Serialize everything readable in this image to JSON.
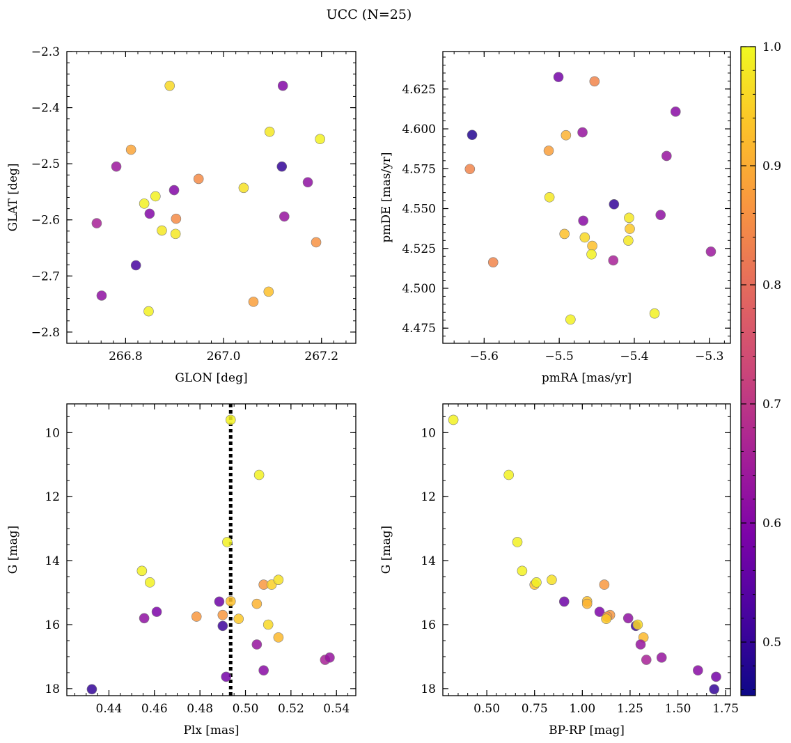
{
  "figure": {
    "suptitle": "UCC (N=25)"
  },
  "colorbar": {
    "range": [
      0.455,
      1.0
    ],
    "ticks": [
      0.5,
      0.6,
      0.7,
      0.8,
      0.9,
      1.0
    ],
    "tick_labels": [
      "0.5",
      "0.6",
      "0.7",
      "0.8",
      "0.9",
      "1.0"
    ],
    "colormap": "plasma"
  },
  "chart_data": [
    {
      "id": "panel-glon-glat",
      "type": "scatter",
      "title": "",
      "xlabel": "GLON [deg]",
      "ylabel": "GLAT [deg]",
      "xlim": [
        266.68,
        267.27
      ],
      "ylim": [
        -2.82,
        -2.3
      ],
      "y_inverted": false,
      "xticks": [
        266.8,
        267.0,
        267.2
      ],
      "xtick_labels": [
        "266.8",
        "267.0",
        "267.2"
      ],
      "yticks": [
        -2.8,
        -2.7,
        -2.6,
        -2.5,
        -2.4,
        -2.3
      ],
      "ytick_labels": [
        "−2.8",
        "−2.7",
        "−2.6",
        "−2.5",
        "−2.4",
        "−2.3"
      ],
      "x_minor_step": 0.025,
      "y_minor_step": 0.02,
      "points": [
        {
          "x": 266.89,
          "y": -2.361,
          "c": 0.96
        },
        {
          "x": 267.121,
          "y": -2.361,
          "c": 0.6
        },
        {
          "x": 266.811,
          "y": -2.475,
          "c": 0.89
        },
        {
          "x": 266.781,
          "y": -2.505,
          "c": 0.64
        },
        {
          "x": 266.949,
          "y": -2.527,
          "c": 0.85
        },
        {
          "x": 267.041,
          "y": -2.543,
          "c": 0.97
        },
        {
          "x": 267.094,
          "y": -2.443,
          "c": 0.98
        },
        {
          "x": 267.197,
          "y": -2.456,
          "c": 0.99
        },
        {
          "x": 267.119,
          "y": -2.505,
          "c": 0.5
        },
        {
          "x": 267.172,
          "y": -2.533,
          "c": 0.62
        },
        {
          "x": 266.861,
          "y": -2.558,
          "c": 0.99
        },
        {
          "x": 266.899,
          "y": -2.547,
          "c": 0.6
        },
        {
          "x": 266.838,
          "y": -2.571,
          "c": 0.99
        },
        {
          "x": 266.849,
          "y": -2.589,
          "c": 0.6
        },
        {
          "x": 266.903,
          "y": -2.598,
          "c": 0.85
        },
        {
          "x": 267.124,
          "y": -2.594,
          "c": 0.63
        },
        {
          "x": 266.741,
          "y": -2.606,
          "c": 0.66
        },
        {
          "x": 266.874,
          "y": -2.619,
          "c": 0.98
        },
        {
          "x": 266.902,
          "y": -2.625,
          "c": 0.98
        },
        {
          "x": 267.189,
          "y": -2.64,
          "c": 0.86
        },
        {
          "x": 266.821,
          "y": -2.681,
          "c": 0.52
        },
        {
          "x": 267.092,
          "y": -2.728,
          "c": 0.93
        },
        {
          "x": 266.751,
          "y": -2.735,
          "c": 0.62
        },
        {
          "x": 267.061,
          "y": -2.746,
          "c": 0.88
        },
        {
          "x": 266.847,
          "y": -2.763,
          "c": 0.99
        }
      ]
    },
    {
      "id": "panel-pm",
      "type": "scatter",
      "title": "",
      "xlabel": "pmRA [mas/yr]",
      "ylabel": "pmDE [mas/yr]",
      "xlim": [
        -5.655,
        -5.272
      ],
      "ylim": [
        4.4655,
        4.6485
      ],
      "y_inverted": false,
      "xticks": [
        -5.6,
        -5.5,
        -5.4,
        -5.3
      ],
      "xtick_labels": [
        "−5.6",
        "−5.5",
        "−5.4",
        "−5.3"
      ],
      "yticks": [
        4.475,
        4.5,
        4.525,
        4.55,
        4.575,
        4.6,
        4.625
      ],
      "ytick_labels": [
        "4.475",
        "4.500",
        "4.525",
        "4.550",
        "4.575",
        "4.600",
        "4.625"
      ],
      "x_minor_step": 0.02,
      "y_minor_step": 0.005,
      "points": [
        {
          "x": -5.501,
          "y": 4.6325,
          "c": 0.58
        },
        {
          "x": -5.453,
          "y": 4.6298,
          "c": 0.84
        },
        {
          "x": -5.345,
          "y": 4.6108,
          "c": 0.61
        },
        {
          "x": -5.616,
          "y": 4.5962,
          "c": 0.48
        },
        {
          "x": -5.469,
          "y": 4.5978,
          "c": 0.63
        },
        {
          "x": -5.491,
          "y": 4.596,
          "c": 0.91
        },
        {
          "x": -5.514,
          "y": 4.5863,
          "c": 0.88
        },
        {
          "x": -5.619,
          "y": 4.5748,
          "c": 0.84
        },
        {
          "x": -5.357,
          "y": 4.583,
          "c": 0.63
        },
        {
          "x": -5.513,
          "y": 4.5571,
          "c": 0.98
        },
        {
          "x": -5.427,
          "y": 4.5527,
          "c": 0.5
        },
        {
          "x": -5.468,
          "y": 4.5424,
          "c": 0.61
        },
        {
          "x": -5.407,
          "y": 4.5442,
          "c": 0.98
        },
        {
          "x": -5.365,
          "y": 4.546,
          "c": 0.62
        },
        {
          "x": -5.406,
          "y": 4.5373,
          "c": 0.94
        },
        {
          "x": -5.493,
          "y": 4.5341,
          "c": 0.93
        },
        {
          "x": -5.466,
          "y": 4.5319,
          "c": 0.96
        },
        {
          "x": -5.408,
          "y": 4.5299,
          "c": 0.98
        },
        {
          "x": -5.456,
          "y": 4.5266,
          "c": 0.93
        },
        {
          "x": -5.457,
          "y": 4.5213,
          "c": 0.99
        },
        {
          "x": -5.298,
          "y": 4.523,
          "c": 0.64
        },
        {
          "x": -5.428,
          "y": 4.5175,
          "c": 0.66
        },
        {
          "x": -5.588,
          "y": 4.5163,
          "c": 0.84
        },
        {
          "x": -5.373,
          "y": 4.4842,
          "c": 0.99
        },
        {
          "x": -5.485,
          "y": 4.4804,
          "c": 0.99
        }
      ]
    },
    {
      "id": "panel-plx-g",
      "type": "scatter",
      "title": "",
      "xlabel": "Plx [mas]",
      "ylabel": "G [mag]",
      "xlim": [
        0.4215,
        0.5485
      ],
      "ylim": [
        9.1,
        18.22
      ],
      "y_inverted": true,
      "xticks": [
        0.44,
        0.46,
        0.48,
        0.5,
        0.52,
        0.54
      ],
      "xtick_labels": [
        "0.44",
        "0.46",
        "0.48",
        "0.50",
        "0.52",
        "0.54"
      ],
      "yticks": [
        10,
        12,
        14,
        16,
        18
      ],
      "ytick_labels": [
        "10",
        "12",
        "14",
        "16",
        "18"
      ],
      "x_minor_step": 0.005,
      "y_minor_step": 0.5,
      "vline": {
        "x": 0.4935,
        "style": "dotted"
      },
      "points": [
        {
          "x": 0.4935,
          "y": 9.6,
          "c": 0.99
        },
        {
          "x": 0.506,
          "y": 11.32,
          "c": 0.99
        },
        {
          "x": 0.492,
          "y": 13.42,
          "c": 0.99
        },
        {
          "x": 0.4545,
          "y": 14.32,
          "c": 0.99
        },
        {
          "x": 0.458,
          "y": 14.68,
          "c": 0.99
        },
        {
          "x": 0.508,
          "y": 14.75,
          "c": 0.87
        },
        {
          "x": 0.5115,
          "y": 14.75,
          "c": 0.95
        },
        {
          "x": 0.5145,
          "y": 14.6,
          "c": 0.97
        },
        {
          "x": 0.4885,
          "y": 15.28,
          "c": 0.57
        },
        {
          "x": 0.4935,
          "y": 15.27,
          "c": 0.93
        },
        {
          "x": 0.505,
          "y": 15.35,
          "c": 0.91
        },
        {
          "x": 0.461,
          "y": 15.6,
          "c": 0.59
        },
        {
          "x": 0.4555,
          "y": 15.8,
          "c": 0.62
        },
        {
          "x": 0.4785,
          "y": 15.75,
          "c": 0.87
        },
        {
          "x": 0.49,
          "y": 15.7,
          "c": 0.87
        },
        {
          "x": 0.497,
          "y": 15.82,
          "c": 0.94
        },
        {
          "x": 0.49,
          "y": 16.04,
          "c": 0.51
        },
        {
          "x": 0.51,
          "y": 16.0,
          "c": 0.96
        },
        {
          "x": 0.5145,
          "y": 16.4,
          "c": 0.92
        },
        {
          "x": 0.505,
          "y": 16.62,
          "c": 0.63
        },
        {
          "x": 0.508,
          "y": 17.43,
          "c": 0.61
        },
        {
          "x": 0.535,
          "y": 17.1,
          "c": 0.66
        },
        {
          "x": 0.537,
          "y": 17.03,
          "c": 0.63
        },
        {
          "x": 0.4915,
          "y": 17.63,
          "c": 0.58
        },
        {
          "x": 0.4325,
          "y": 18.02,
          "c": 0.5
        }
      ]
    },
    {
      "id": "panel-cmd",
      "type": "scatter",
      "title": "",
      "xlabel": "BP-RP [mag]",
      "ylabel": "G [mag]",
      "xlim": [
        0.27,
        1.775
      ],
      "ylim": [
        9.1,
        18.22
      ],
      "y_inverted": true,
      "xticks": [
        0.5,
        0.75,
        1.0,
        1.25,
        1.5,
        1.75
      ],
      "xtick_labels": [
        "0.50",
        "0.75",
        "1.00",
        "1.25",
        "1.50",
        "1.75"
      ],
      "yticks": [
        10,
        12,
        14,
        16,
        18
      ],
      "ytick_labels": [
        "10",
        "12",
        "14",
        "16",
        "18"
      ],
      "x_minor_step": 0.05,
      "y_minor_step": 0.5,
      "points": [
        {
          "x": 0.325,
          "y": 9.6,
          "c": 0.99
        },
        {
          "x": 0.615,
          "y": 11.32,
          "c": 0.99
        },
        {
          "x": 0.66,
          "y": 13.42,
          "c": 0.99
        },
        {
          "x": 0.685,
          "y": 14.32,
          "c": 0.99
        },
        {
          "x": 0.75,
          "y": 14.75,
          "c": 0.93
        },
        {
          "x": 0.76,
          "y": 14.68,
          "c": 0.99
        },
        {
          "x": 0.84,
          "y": 14.6,
          "c": 0.97
        },
        {
          "x": 0.905,
          "y": 15.28,
          "c": 0.57
        },
        {
          "x": 1.025,
          "y": 15.27,
          "c": 0.93
        },
        {
          "x": 1.025,
          "y": 15.35,
          "c": 0.91
        },
        {
          "x": 1.115,
          "y": 14.75,
          "c": 0.87
        },
        {
          "x": 1.09,
          "y": 15.6,
          "c": 0.59
        },
        {
          "x": 1.145,
          "y": 15.7,
          "c": 0.87
        },
        {
          "x": 1.13,
          "y": 15.75,
          "c": 0.87
        },
        {
          "x": 1.125,
          "y": 15.82,
          "c": 0.94
        },
        {
          "x": 1.24,
          "y": 15.8,
          "c": 0.62
        },
        {
          "x": 1.28,
          "y": 16.04,
          "c": 0.51
        },
        {
          "x": 1.29,
          "y": 16.0,
          "c": 0.96
        },
        {
          "x": 1.32,
          "y": 16.4,
          "c": 0.92
        },
        {
          "x": 1.305,
          "y": 16.62,
          "c": 0.63
        },
        {
          "x": 1.335,
          "y": 17.1,
          "c": 0.66
        },
        {
          "x": 1.415,
          "y": 17.03,
          "c": 0.63
        },
        {
          "x": 1.605,
          "y": 17.43,
          "c": 0.61
        },
        {
          "x": 1.7,
          "y": 17.63,
          "c": 0.58
        },
        {
          "x": 1.69,
          "y": 18.02,
          "c": 0.5
        }
      ]
    }
  ]
}
